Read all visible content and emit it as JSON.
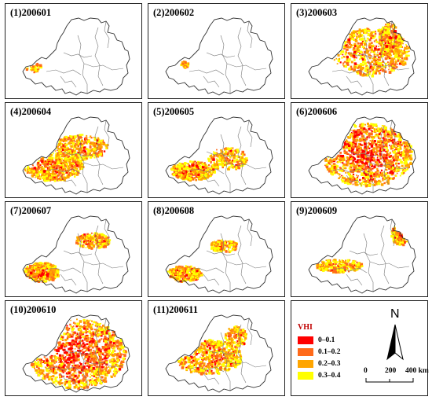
{
  "panels": [
    {
      "label": "(1)200601"
    },
    {
      "label": "(2)200602"
    },
    {
      "label": "(3)200603"
    },
    {
      "label": "(4)200604"
    },
    {
      "label": "(5)200605"
    },
    {
      "label": "(6)200606"
    },
    {
      "label": "(7)200607"
    },
    {
      "label": "(8)200608"
    },
    {
      "label": "(9)200609"
    },
    {
      "label": "(10)200610"
    },
    {
      "label": "(11)200611"
    }
  ],
  "legend": {
    "title": "VHI",
    "classes": [
      {
        "label": "0–0.1",
        "color": "#ff0000"
      },
      {
        "label": "0.1–0.2",
        "color": "#ff6a1a"
      },
      {
        "label": "0.2–0.3",
        "color": "#ffa500"
      },
      {
        "label": "0.3–0.4",
        "color": "#ffff00"
      }
    ]
  },
  "north_arrow": {
    "letter": "N"
  },
  "scale_bar": {
    "labels": [
      "0",
      "200",
      "400 km"
    ]
  }
}
